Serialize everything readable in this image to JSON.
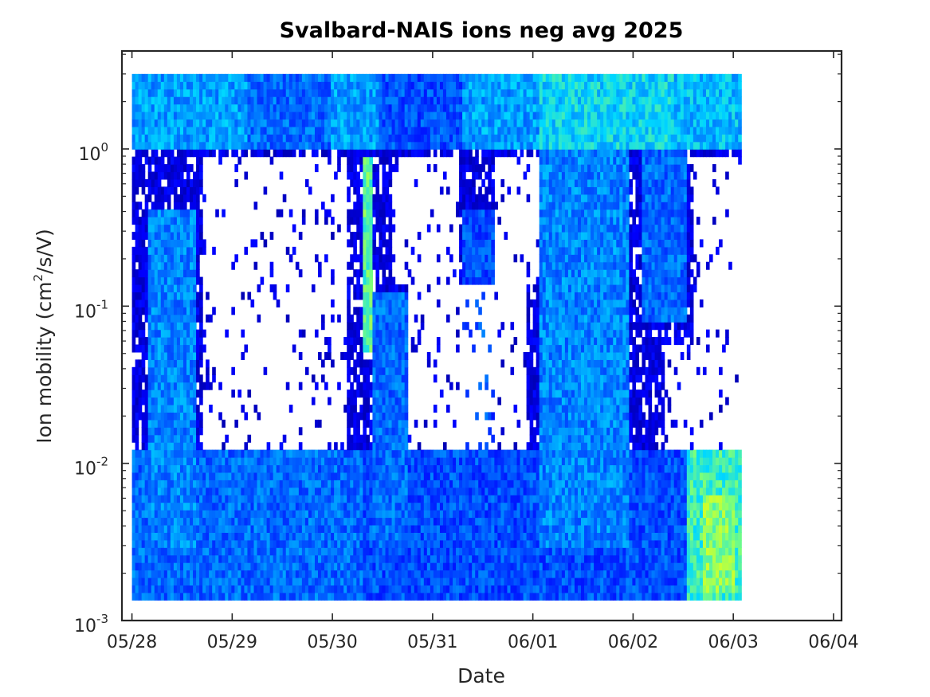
{
  "chart_data": {
    "type": "heatmap",
    "title": "Svalbard-NAIS ions neg avg 2025",
    "xlabel": "Date",
    "ylabel": {
      "prefix": "Ion mobility (cm",
      "sup": "2",
      "suffix": "/s/V)"
    },
    "x_tick_labels": [
      "05/28",
      "05/29",
      "05/30",
      "05/31",
      "06/01",
      "06/02",
      "06/03",
      "06/04"
    ],
    "x_ticks_days": [
      0,
      1,
      2,
      3,
      4,
      5,
      6,
      7
    ],
    "xlim_days": [
      -0.1,
      7.08
    ],
    "y_scale": "log",
    "ylim": [
      0.001,
      4.2
    ],
    "y_ticks": [
      {
        "base": "10",
        "exp": "-3",
        "value": 0.001
      },
      {
        "base": "10",
        "exp": "-2",
        "value": 0.01
      },
      {
        "base": "10",
        "exp": "-1",
        "value": 0.1
      },
      {
        "base": "10",
        "exp": "0",
        "value": 1
      }
    ],
    "data_extent": {
      "x_days": [
        0,
        6.08
      ],
      "y": [
        0.00135,
        3.0
      ]
    },
    "colormap": [
      "#00009c",
      "#0000ff",
      "#0066ff",
      "#00d8ff",
      "#7cff7a",
      "#ffff00"
    ],
    "grid": false,
    "intensity_regions": [
      {
        "x": [
          0.0,
          1.15
        ],
        "y": [
          1.0,
          3.0
        ],
        "level": 0.5
      },
      {
        "x": [
          1.1,
          2.05
        ],
        "y": [
          1.0,
          3.0
        ],
        "level": 0.4
      },
      {
        "x": [
          2.0,
          2.45
        ],
        "y": [
          1.0,
          3.0
        ],
        "level": 0.5
      },
      {
        "x": [
          2.45,
          3.3
        ],
        "y": [
          1.0,
          3.0
        ],
        "level": 0.35
      },
      {
        "x": [
          3.3,
          4.05
        ],
        "y": [
          1.0,
          3.0
        ],
        "level": 0.5
      },
      {
        "x": [
          4.05,
          5.4
        ],
        "y": [
          1.0,
          3.0
        ],
        "level": 0.6
      },
      {
        "x": [
          5.4,
          6.08
        ],
        "y": [
          1.0,
          3.0
        ],
        "level": 0.55
      },
      {
        "x": [
          0.15,
          0.65
        ],
        "y": [
          0.003,
          0.4
        ],
        "level": 0.45
      },
      {
        "x": [
          2.3,
          2.4
        ],
        "y": [
          0.05,
          0.9
        ],
        "level": 0.75
      },
      {
        "x": [
          2.4,
          2.75
        ],
        "y": [
          0.003,
          0.12
        ],
        "level": 0.4
      },
      {
        "x": [
          3.3,
          3.6
        ],
        "y": [
          0.003,
          0.4
        ],
        "level": 0.35
      },
      {
        "x": [
          4.05,
          4.95
        ],
        "y": [
          0.003,
          1.0
        ],
        "level": 0.45
      },
      {
        "x": [
          5.1,
          5.55
        ],
        "y": [
          0.08,
          1.0
        ],
        "level": 0.4
      },
      {
        "x": [
          0.0,
          2.3
        ],
        "y": [
          0.00135,
          0.012
        ],
        "level": 0.4
      },
      {
        "x": [
          2.3,
          4.6
        ],
        "y": [
          0.00135,
          0.012
        ],
        "level": 0.35
      },
      {
        "x": [
          4.6,
          5.55
        ],
        "y": [
          0.00135,
          0.012
        ],
        "level": 0.35
      },
      {
        "x": [
          5.55,
          6.08
        ],
        "y": [
          0.00135,
          0.012
        ],
        "level": 0.7
      },
      {
        "x": [
          5.7,
          6.0
        ],
        "y": [
          0.0015,
          0.006
        ],
        "level": 0.82
      }
    ],
    "empty_regions": [
      {
        "x": [
          0.7,
          2.15
        ],
        "y": [
          0.012,
          0.85
        ]
      },
      {
        "x": [
          2.6,
          3.25
        ],
        "y": [
          0.14,
          0.9
        ]
      },
      {
        "x": [
          2.75,
          3.95
        ],
        "y": [
          0.012,
          0.14
        ]
      },
      {
        "x": [
          3.6,
          4.05
        ],
        "y": [
          0.14,
          0.9
        ]
      },
      {
        "x": [
          5.3,
          6.08
        ],
        "y": [
          0.012,
          0.06
        ]
      },
      {
        "x": [
          5.6,
          6.08
        ],
        "y": [
          0.06,
          0.9
        ]
      }
    ]
  }
}
